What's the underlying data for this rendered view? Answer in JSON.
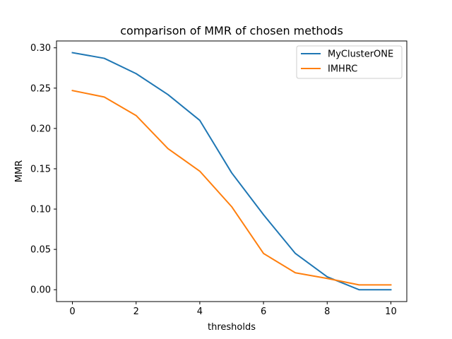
{
  "chart_data": {
    "type": "line",
    "title": "comparison of MMR of chosen methods",
    "xlabel": "thresholds",
    "ylabel": "MMR",
    "x": [
      0,
      1,
      2,
      3,
      4,
      5,
      6,
      7,
      8,
      9,
      10
    ],
    "xlim": [
      -0.5,
      10.5
    ],
    "ylim": [
      -0.0147,
      0.3085
    ],
    "xticks": [
      0,
      2,
      4,
      6,
      8,
      10
    ],
    "xtick_labels": [
      "0",
      "2",
      "4",
      "6",
      "8",
      "10"
    ],
    "yticks": [
      0.0,
      0.05,
      0.1,
      0.15,
      0.2,
      0.25,
      0.3
    ],
    "ytick_labels": [
      "0.00",
      "0.05",
      "0.10",
      "0.15",
      "0.20",
      "0.25",
      "0.30"
    ],
    "grid": false,
    "legend_position": "top-right",
    "series": [
      {
        "name": "MyClusterONE",
        "color": "#1f77b4",
        "values": [
          0.294,
          0.287,
          0.268,
          0.242,
          0.21,
          0.145,
          0.093,
          0.045,
          0.016,
          0.0,
          0.0
        ]
      },
      {
        "name": "IMHRC",
        "color": "#ff7f0e",
        "values": [
          0.247,
          0.239,
          0.216,
          0.175,
          0.147,
          0.103,
          0.045,
          0.021,
          0.014,
          0.006,
          0.006
        ]
      }
    ]
  }
}
